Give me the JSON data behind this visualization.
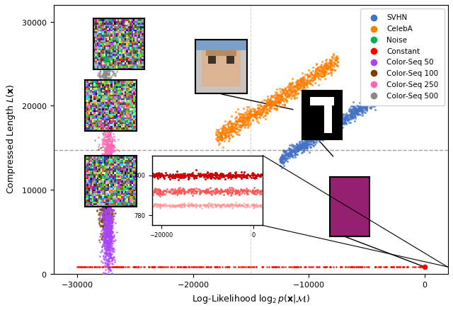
{
  "xlabel": "Log-Likelihood $\\log_2 p(\\mathbf{x}|\\mathcal{M})$",
  "ylabel": "Compressed Length $L(\\mathbf{x})$",
  "xlim": [
    -32000,
    2000
  ],
  "ylim": [
    0,
    32000
  ],
  "dashed_hline": 14700,
  "dashed_vline": -15000,
  "svhn_color": "#4472C4",
  "celeba_color": "#FF7F00",
  "noise_color": "#00B050",
  "constant_color": "#FF0000",
  "colorseq50_color": "#AA44FF",
  "colorseq100_color": "#7B3F00",
  "colorseq250_color": "#FF69B4",
  "colorseq500_color": "#888888",
  "magenta_color": "#952070",
  "legend_entries": [
    "SVHN",
    "CelebA",
    "Noise",
    "Constant",
    "Color-Seq 50",
    "Color-Seq 100",
    "Color-Seq 250",
    "Color-Seq 500"
  ],
  "legend_colors": [
    "#4472C4",
    "#FF7F00",
    "#00B050",
    "#FF0000",
    "#AA44FF",
    "#7B3F00",
    "#FF69B4",
    "#888888"
  ]
}
